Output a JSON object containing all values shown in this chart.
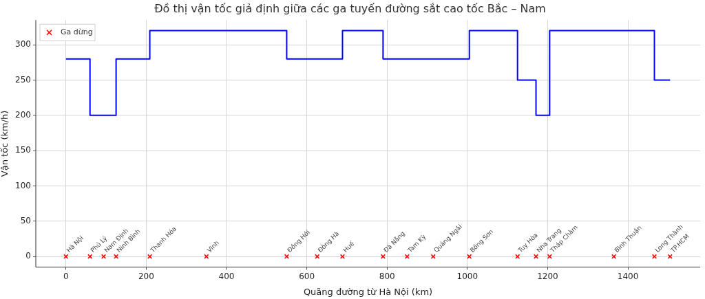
{
  "chart_data": {
    "type": "step",
    "title": "Đồ thị vận tốc giả định giữa các ga tuyến đường sắt cao tốc Bắc – Nam",
    "xlabel": "Quãng đường từ Hà Nội (km)",
    "ylabel": "Vận tốc (km/h)",
    "series": [
      {
        "type": "step",
        "color": "#0000ff",
        "marker": "none",
        "x": [
          0,
          60,
          94,
          125,
          209,
          350,
          550,
          626,
          689,
          790,
          850,
          915,
          1005,
          1125,
          1171,
          1205,
          1365,
          1466,
          1505
        ],
        "values": [
          280,
          200,
          200,
          280,
          320,
          320,
          280,
          280,
          320,
          280,
          280,
          280,
          320,
          250,
          200,
          320,
          320,
          250,
          250
        ]
      },
      {
        "type": "scatter",
        "name": "Ga dừng",
        "color": "#ff0000",
        "marker": "cross",
        "x": [
          0,
          60,
          94,
          125,
          209,
          350,
          550,
          626,
          689,
          790,
          850,
          915,
          1005,
          1125,
          1171,
          1205,
          1365,
          1466,
          1505
        ],
        "values": [
          0,
          0,
          0,
          0,
          0,
          0,
          0,
          0,
          0,
          0,
          0,
          0,
          0,
          0,
          0,
          0,
          0,
          0,
          0
        ]
      }
    ],
    "annotations": [
      {
        "text": "Hà Nội",
        "x": 0,
        "y": 0
      },
      {
        "text": "Phủ Lý",
        "x": 60,
        "y": 0
      },
      {
        "text": "Nam Định",
        "x": 94,
        "y": 0
      },
      {
        "text": "Ninh Bình",
        "x": 125,
        "y": 0
      },
      {
        "text": "Thanh Hóa",
        "x": 209,
        "y": 0
      },
      {
        "text": "Vinh",
        "x": 350,
        "y": 0
      },
      {
        "text": "Đồng Hới",
        "x": 550,
        "y": 0
      },
      {
        "text": "Đông Hà",
        "x": 626,
        "y": 0
      },
      {
        "text": "Huế",
        "x": 689,
        "y": 0
      },
      {
        "text": "Đà Nẵng",
        "x": 790,
        "y": 0
      },
      {
        "text": "Tam Kỳ",
        "x": 850,
        "y": 0
      },
      {
        "text": "Quảng Ngãi",
        "x": 915,
        "y": 0
      },
      {
        "text": "Bồng Sơn",
        "x": 1005,
        "y": 0
      },
      {
        "text": "Tuy Hòa",
        "x": 1125,
        "y": 0
      },
      {
        "text": "Nha Trang",
        "x": 1171,
        "y": 0
      },
      {
        "text": "Tháp Chàm",
        "x": 1205,
        "y": 0
      },
      {
        "text": "Bình Thuận",
        "x": 1365,
        "y": 0
      },
      {
        "text": "Long Thành",
        "x": 1466,
        "y": 0
      },
      {
        "text": "TP.HCM",
        "x": 1505,
        "y": 0
      }
    ],
    "xlim": [
      -75,
      1580
    ],
    "xticks": [
      0,
      200,
      400,
      600,
      800,
      1000,
      1200,
      1400
    ],
    "ylim": [
      -15,
      335
    ],
    "yticks": [
      0,
      50,
      100,
      150,
      200,
      250,
      300
    ],
    "grid": true,
    "legend": "top left"
  }
}
